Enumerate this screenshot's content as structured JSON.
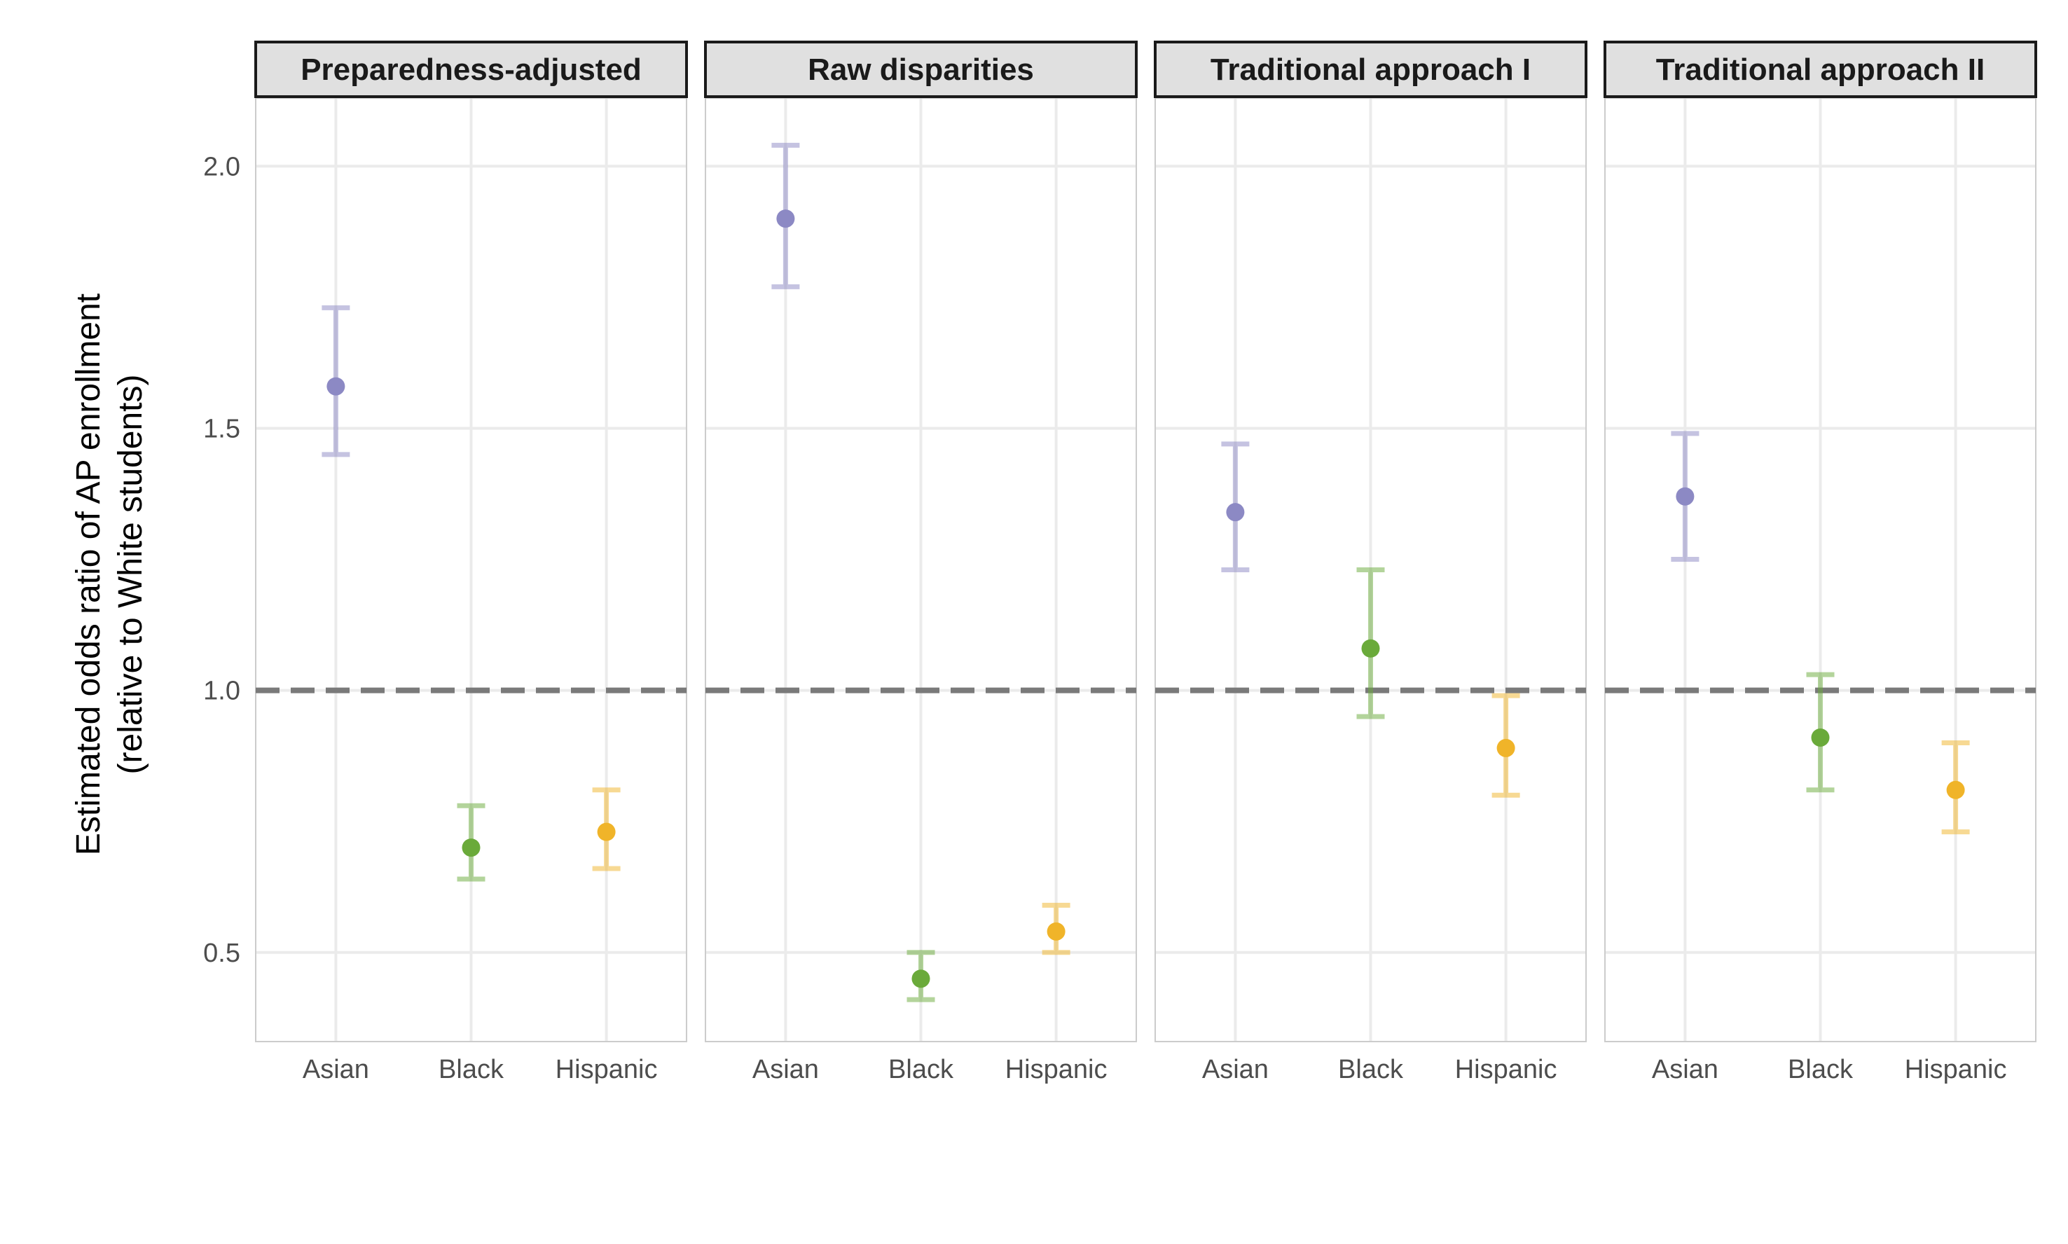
{
  "chart_data": {
    "type": "scatter",
    "ylabel_line1": "Estimated odds ratio of AP enrollment",
    "ylabel_line2": "(relative to White students)",
    "xlabel": "",
    "categories": [
      "Asian",
      "Black",
      "Hispanic"
    ],
    "ylim": [
      0.33,
      2.13
    ],
    "yticks": [
      0.5,
      1.0,
      1.5,
      2.0
    ],
    "ytick_labels": [
      "0.5",
      "1.0",
      "1.5",
      "2.0"
    ],
    "reference_line": 1.0,
    "grid": true,
    "colors": {
      "Asian": "#8c89c4",
      "Black": "#6aaa3a",
      "Hispanic": "#f0b429",
      "strip_fill": "#e0e0e0",
      "reference_line": "#7a7a7a"
    },
    "panels": [
      {
        "title": "Preparedness-adjusted",
        "points": [
          {
            "category": "Asian",
            "estimate": 1.58,
            "lower": 1.45,
            "upper": 1.73
          },
          {
            "category": "Black",
            "estimate": 0.7,
            "lower": 0.64,
            "upper": 0.78
          },
          {
            "category": "Hispanic",
            "estimate": 0.73,
            "lower": 0.66,
            "upper": 0.81
          }
        ]
      },
      {
        "title": "Raw disparities",
        "points": [
          {
            "category": "Asian",
            "estimate": 1.9,
            "lower": 1.77,
            "upper": 2.04
          },
          {
            "category": "Black",
            "estimate": 0.45,
            "lower": 0.41,
            "upper": 0.5
          },
          {
            "category": "Hispanic",
            "estimate": 0.54,
            "lower": 0.5,
            "upper": 0.59
          }
        ]
      },
      {
        "title": "Traditional approach I",
        "points": [
          {
            "category": "Asian",
            "estimate": 1.34,
            "lower": 1.23,
            "upper": 1.47
          },
          {
            "category": "Black",
            "estimate": 1.08,
            "lower": 0.95,
            "upper": 1.23
          },
          {
            "category": "Hispanic",
            "estimate": 0.89,
            "lower": 0.8,
            "upper": 0.99
          }
        ]
      },
      {
        "title": "Traditional approach II",
        "points": [
          {
            "category": "Asian",
            "estimate": 1.37,
            "lower": 1.25,
            "upper": 1.49
          },
          {
            "category": "Black",
            "estimate": 0.91,
            "lower": 0.81,
            "upper": 1.03
          },
          {
            "category": "Hispanic",
            "estimate": 0.81,
            "lower": 0.73,
            "upper": 0.9
          }
        ]
      }
    ]
  }
}
